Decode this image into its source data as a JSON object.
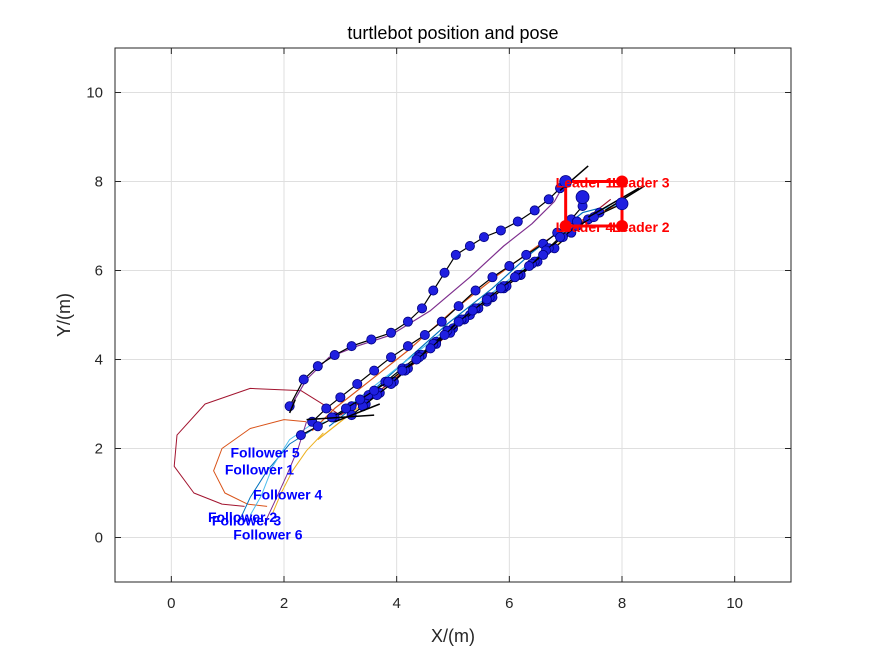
{
  "chart_data": {
    "type": "line",
    "title": "turtlebot position and pose",
    "xlabel": "X/(m)",
    "ylabel": "Y/(m)",
    "xlim": [
      -1,
      11
    ],
    "ylim": [
      -1,
      11
    ],
    "xticks": [
      "0",
      "2",
      "4",
      "6",
      "8",
      "10"
    ],
    "yticks": [
      "0",
      "2",
      "4",
      "6",
      "8",
      "10"
    ],
    "grid": true,
    "leaders": [
      {
        "label": "Leader 1",
        "x": 7.0,
        "y": 8.0
      },
      {
        "label": "Leader 3",
        "x": 8.0,
        "y": 8.0
      },
      {
        "label": "Leader 4",
        "x": 7.0,
        "y": 7.0
      },
      {
        "label": "Leader 2",
        "x": 8.0,
        "y": 7.0
      }
    ],
    "follower_labels": [
      {
        "label": "Follower 5",
        "x": 1.05,
        "y": 1.8
      },
      {
        "label": "Follower 1",
        "x": 0.95,
        "y": 1.42
      },
      {
        "label": "Follower 4",
        "x": 1.45,
        "y": 0.85
      },
      {
        "label": "Follower 2",
        "x": 0.65,
        "y": 0.35
      },
      {
        "label": "Follower 3",
        "x": 0.72,
        "y": 0.27
      },
      {
        "label": "Follower 6",
        "x": 1.1,
        "y": -0.05
      }
    ],
    "trajectories": [
      {
        "color": "#7e2f8e",
        "x": [
          2.1,
          2.4,
          2.8,
          3.3,
          3.9,
          4.6,
          5.3,
          5.9,
          6.4,
          6.8,
          7.0
        ],
        "y": [
          2.9,
          3.55,
          4.05,
          4.3,
          4.55,
          5.1,
          5.85,
          6.55,
          7.05,
          7.55,
          8.0
        ]
      },
      {
        "color": "#d95319",
        "x": [
          2.5,
          2.9,
          3.5,
          4.2,
          5.0,
          5.8,
          6.5,
          7.0,
          7.4,
          7.7,
          8.0
        ],
        "y": [
          2.4,
          2.9,
          3.5,
          4.2,
          5.1,
          5.9,
          6.55,
          6.95,
          7.2,
          7.35,
          7.5
        ]
      },
      {
        "color": "#0072bd",
        "x": [
          2.8,
          3.4,
          4.1,
          4.9,
          5.7,
          6.4,
          6.9,
          7.3,
          7.6
        ],
        "y": [
          2.5,
          3.1,
          3.9,
          4.8,
          5.6,
          6.4,
          6.9,
          7.3,
          7.4
        ]
      },
      {
        "color": "#edb120",
        "x": [
          2.6,
          3.2,
          3.9,
          4.6,
          5.4,
          6.1,
          6.7,
          7.2,
          7.5
        ],
        "y": [
          2.2,
          2.8,
          3.5,
          4.3,
          5.1,
          5.8,
          6.4,
          7.0,
          7.3
        ]
      },
      {
        "color": "#4dbeee",
        "x": [
          2.9,
          3.6,
          4.4,
          5.2,
          6.0,
          6.7,
          7.2,
          7.7,
          8.0
        ],
        "y": [
          2.7,
          3.4,
          4.2,
          5.0,
          5.8,
          6.5,
          7.0,
          7.4,
          7.5
        ]
      },
      {
        "color": "#a2142f",
        "x": [
          3.0,
          3.7,
          4.5,
          5.3,
          6.1,
          6.8,
          7.3,
          7.8
        ],
        "y": [
          2.75,
          3.3,
          4.1,
          5.0,
          5.8,
          6.6,
          7.1,
          7.6
        ]
      }
    ],
    "initial_curves": [
      {
        "color": "#a2142f",
        "x": [
          3.0,
          2.3,
          1.4,
          0.6,
          0.1,
          0.05,
          0.4,
          0.9,
          1.3
        ],
        "y": [
          2.75,
          3.3,
          3.35,
          3.0,
          2.3,
          1.6,
          1.0,
          0.75,
          0.7
        ]
      },
      {
        "color": "#d95319",
        "x": [
          2.4,
          2.0,
          1.4,
          0.9,
          0.75,
          0.95,
          1.35,
          1.7
        ],
        "y": [
          2.6,
          2.65,
          2.45,
          2.0,
          1.5,
          1.0,
          0.75,
          0.7
        ]
      },
      {
        "color": "#0072bd",
        "x": [
          2.6,
          2.1,
          1.7,
          1.4,
          1.2
        ],
        "y": [
          2.5,
          2.1,
          1.5,
          0.9,
          0.35
        ]
      },
      {
        "color": "#4dbeee",
        "x": [
          2.75,
          2.5,
          2.1,
          1.8,
          1.6,
          1.4
        ],
        "y": [
          2.6,
          2.55,
          2.2,
          1.6,
          0.95,
          0.5
        ]
      },
      {
        "color": "#7e2f8e",
        "x": [
          2.4,
          2.25,
          2.05,
          1.85,
          1.65
        ],
        "y": [
          2.6,
          2.0,
          1.4,
          0.85,
          0.3
        ]
      },
      {
        "color": "#edb120",
        "x": [
          2.7,
          2.4,
          2.15,
          1.95,
          1.8
        ],
        "y": [
          2.35,
          1.95,
          1.5,
          1.0,
          0.55
        ]
      }
    ],
    "robot_paths": [
      {
        "x": [
          2.1,
          2.35,
          2.6,
          2.9,
          3.2,
          3.55,
          3.9,
          4.2,
          4.45,
          4.65,
          4.85,
          5.05,
          5.3,
          5.55,
          5.85,
          6.15,
          6.45,
          6.7,
          6.9,
          7.0
        ],
        "y": [
          2.95,
          3.55,
          3.85,
          4.1,
          4.3,
          4.45,
          4.6,
          4.85,
          5.15,
          5.55,
          5.95,
          6.35,
          6.55,
          6.75,
          6.9,
          7.1,
          7.35,
          7.6,
          7.85,
          8.0
        ]
      },
      {
        "x": [
          2.5,
          2.75,
          3.0,
          3.3,
          3.6,
          3.9,
          4.2,
          4.5,
          4.8,
          5.1,
          5.4,
          5.7,
          6.0,
          6.3,
          6.6,
          6.85,
          7.1,
          7.3
        ],
        "y": [
          2.6,
          2.9,
          3.15,
          3.45,
          3.75,
          4.05,
          4.3,
          4.55,
          4.85,
          5.2,
          5.55,
          5.85,
          6.1,
          6.35,
          6.6,
          6.85,
          7.15,
          7.45
        ]
      },
      {
        "x": [
          2.3,
          2.6,
          2.9,
          3.2,
          3.5,
          3.8,
          4.1,
          4.4,
          4.7,
          5.0,
          5.3,
          5.6,
          5.9,
          6.2,
          6.5,
          6.8,
          7.1,
          7.4,
          7.6
        ],
        "y": [
          2.3,
          2.5,
          2.7,
          2.95,
          3.2,
          3.5,
          3.8,
          4.1,
          4.4,
          4.7,
          5.0,
          5.3,
          5.6,
          5.9,
          6.2,
          6.5,
          6.85,
          7.15,
          7.3
        ]
      },
      {
        "x": [
          3.2,
          3.45,
          3.7,
          3.95,
          4.2,
          4.45,
          4.7,
          4.95,
          5.2,
          5.45,
          5.7,
          5.95,
          6.2,
          6.45,
          6.7,
          6.95,
          7.2,
          7.5,
          8.0
        ],
        "y": [
          2.75,
          3.0,
          3.25,
          3.5,
          3.8,
          4.1,
          4.35,
          4.6,
          4.9,
          5.15,
          5.4,
          5.65,
          5.9,
          6.2,
          6.5,
          6.75,
          7.0,
          7.2,
          7.5
        ]
      },
      {
        "x": [
          3.4,
          3.65,
          3.9,
          4.15,
          4.4,
          4.65,
          4.9,
          5.15,
          5.4,
          5.65,
          5.9,
          6.15,
          6.4,
          6.65,
          6.9,
          7.2
        ],
        "y": [
          2.95,
          3.2,
          3.45,
          3.75,
          4.05,
          4.35,
          4.65,
          4.9,
          5.15,
          5.4,
          5.65,
          5.9,
          6.15,
          6.45,
          6.75,
          7.1
        ]
      },
      {
        "x": [
          2.85,
          3.1,
          3.35,
          3.6,
          3.85,
          4.1,
          4.35,
          4.6,
          4.85,
          5.1,
          5.35,
          5.6,
          5.85,
          6.1,
          6.35,
          6.6
        ],
        "y": [
          2.7,
          2.9,
          3.1,
          3.3,
          3.5,
          3.75,
          4.0,
          4.25,
          4.55,
          4.85,
          5.1,
          5.35,
          5.6,
          5.85,
          6.1,
          6.35
        ]
      }
    ],
    "pose_segments": [
      {
        "x1": 6.9,
        "y1": 7.8,
        "x2": 7.4,
        "y2": 8.35
      },
      {
        "x1": 7.7,
        "y1": 7.35,
        "x2": 8.4,
        "y2": 7.9
      },
      {
        "x1": 7.4,
        "y1": 7.2,
        "x2": 8.3,
        "y2": 7.85
      },
      {
        "x1": 2.2,
        "y1": 3.1,
        "x2": 2.1,
        "y2": 2.8
      },
      {
        "x1": 2.4,
        "y1": 2.65,
        "x2": 3.6,
        "y2": 2.75
      },
      {
        "x1": 2.9,
        "y1": 2.6,
        "x2": 3.7,
        "y2": 3.0
      }
    ]
  }
}
